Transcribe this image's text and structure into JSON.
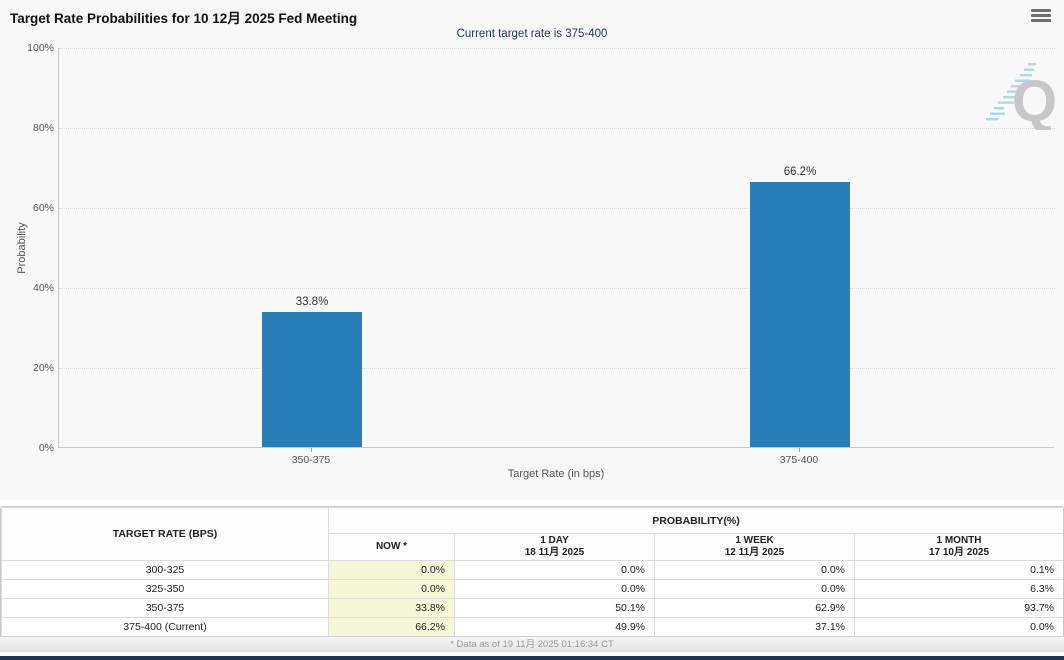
{
  "header": {
    "title": "Target Rate Probabilities for 10 12月 2025 Fed Meeting",
    "subtitle": "Current target rate is 375-400",
    "menu_icon": "hamburger-icon"
  },
  "chart_data": {
    "type": "bar",
    "title": "Target Rate Probabilities for 10 12月 2025 Fed Meeting",
    "categories": [
      "350-375",
      "375-400"
    ],
    "values": [
      33.8,
      66.2
    ],
    "value_labels": [
      "33.8%",
      "66.2%"
    ],
    "xlabel": "Target Rate (in bps)",
    "ylabel": "Probability",
    "ylim": [
      0,
      100
    ],
    "y_tick_labels": [
      "0%",
      "20%",
      "40%",
      "60%",
      "80%",
      "100%"
    ],
    "grid": "horizontal dotted",
    "legend": "none",
    "bar_color": "#2a7fb9",
    "watermark_letter": "Q"
  },
  "table": {
    "rate_header": "TARGET RATE (BPS)",
    "group_header": "PROBABILITY(%)",
    "columns": [
      {
        "label": "NOW *",
        "sublabel": ""
      },
      {
        "label": "1 DAY",
        "sublabel": "18 11月 2025"
      },
      {
        "label": "1 WEEK",
        "sublabel": "12 11月 2025"
      },
      {
        "label": "1 MONTH",
        "sublabel": "17 10月 2025"
      }
    ],
    "rows": [
      {
        "rate": "300-325",
        "now": "0.0%",
        "one_day": "0.0%",
        "one_week": "0.0%",
        "one_month": "0.1%"
      },
      {
        "rate": "325-350",
        "now": "0.0%",
        "one_day": "0.0%",
        "one_week": "0.0%",
        "one_month": "6.3%"
      },
      {
        "rate": "350-375",
        "now": "33.8%",
        "one_day": "50.1%",
        "one_week": "62.9%",
        "one_month": "93.7%"
      },
      {
        "rate": "375-400 (Current)",
        "now": "66.2%",
        "one_day": "49.9%",
        "one_week": "37.1%",
        "one_month": "0.0%"
      }
    ]
  },
  "footer": {
    "note": "* Data as of 19 11月 2025 01:16:34 CT"
  },
  "colors": {
    "bar": "#2a7fb9",
    "subtitle_text": "#203864",
    "now_column_bg": "#f6f6d9",
    "bottom_bar": "#24344f"
  }
}
